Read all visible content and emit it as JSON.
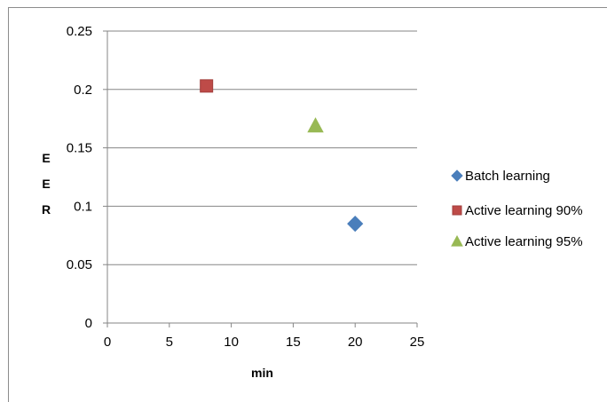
{
  "chart_data": {
    "type": "scatter",
    "title": "",
    "xlabel": "min",
    "ylabel": "E\nE\nR",
    "xlim": [
      0,
      25
    ],
    "ylim": [
      0,
      0.25
    ],
    "x_ticks": [
      "0",
      "5",
      "10",
      "15",
      "20",
      "25"
    ],
    "y_ticks": [
      "0",
      "0.05",
      "0.1",
      "0.15",
      "0.2",
      "0.25"
    ],
    "grid": "horizontal",
    "legend_position": "right",
    "series": [
      {
        "name": "Batch learning",
        "marker": "diamond",
        "color": "#4a7ebb",
        "points": [
          {
            "x": 20,
            "y": 0.085
          }
        ]
      },
      {
        "name": "Active learning 90%",
        "marker": "square",
        "color": "#be4b48",
        "points": [
          {
            "x": 8,
            "y": 0.203
          }
        ]
      },
      {
        "name": "Active learning 95%",
        "marker": "triangle",
        "color": "#98b954",
        "points": [
          {
            "x": 16.8,
            "y": 0.169
          }
        ]
      }
    ]
  }
}
